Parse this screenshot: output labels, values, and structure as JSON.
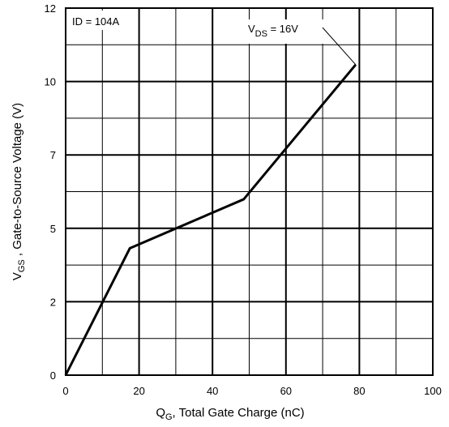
{
  "chart_data": {
    "type": "line",
    "title": "",
    "xlabel": {
      "main": "Q",
      "sub": "G",
      "rest": ", Total Gate Charge (nC)"
    },
    "ylabel": {
      "main": "V",
      "sub": "GS",
      "rest": " , Gate-to-Source Voltage (V)"
    },
    "xlim": [
      0,
      100
    ],
    "ylim": [
      0,
      12
    ],
    "grid": true,
    "x_ticks": [
      0,
      10,
      20,
      30,
      40,
      50,
      60,
      70,
      80,
      90,
      100
    ],
    "x_tick_labels": [
      "0",
      "",
      "20",
      "",
      "40",
      "",
      "60",
      "",
      "80",
      "",
      "100"
    ],
    "y_ticks": [
      0,
      1.2,
      2.4,
      3.6,
      4.8,
      6.0,
      7.2,
      8.4,
      9.6,
      10.8,
      12
    ],
    "y_tick_labels": [
      "0",
      "",
      "2",
      "",
      "5",
      "",
      "7",
      "",
      "10",
      "",
      "12"
    ],
    "series": [
      {
        "x": [
          0,
          17.5,
          48.5,
          79
        ],
        "y": [
          0,
          4.15,
          5.75,
          10.15
        ]
      }
    ],
    "annotations": {
      "id": {
        "prefix": "I",
        "rest": "D =  104A"
      },
      "vds": {
        "main": "V",
        "sub": "DS",
        "rest": " =  16V"
      },
      "arrow_to": [
        79,
        10.15
      ]
    }
  }
}
